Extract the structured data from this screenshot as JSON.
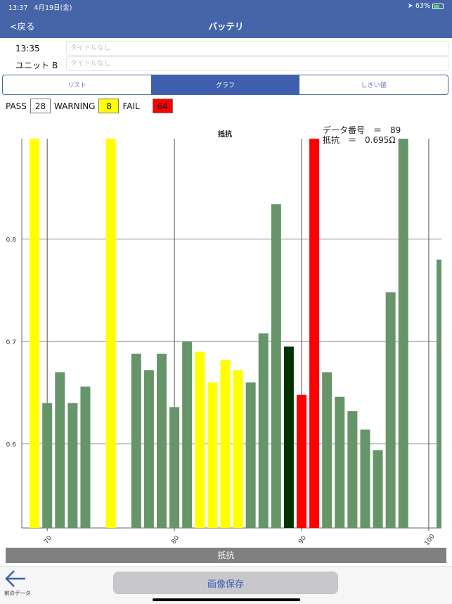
{
  "status_bar": {
    "time": "13:37",
    "date": "4月19日(金)",
    "battery": "63%",
    "battery_level": 0.63
  },
  "nav": {
    "back_label": "<戻る",
    "title": "バッテリ"
  },
  "header": {
    "time_label": "13:35",
    "unit_label": "ユニット B",
    "title_placeholder_1": "タイトルなし",
    "title_placeholder_2": "タイトルなし"
  },
  "tabs": [
    {
      "label": "リスト",
      "active": false
    },
    {
      "label": "グラフ",
      "active": true
    },
    {
      "label": "しきい値",
      "active": false
    }
  ],
  "counts": {
    "pass_label": "PASS",
    "pass": "28",
    "warning_label": "WARNING",
    "warning": "8",
    "fail_label": "FAIL",
    "fail": "64"
  },
  "colors": {
    "pass": "#66956a",
    "warning": "#ffff00",
    "fail": "#ff0000",
    "selected": "#003300",
    "accent": "#4565a8"
  },
  "readout": {
    "line1": "データ番号　＝　89",
    "line2": "抵抗　＝　0.695Ω"
  },
  "chart_data": {
    "type": "bar",
    "title": "抵抗",
    "xlabel": "抵抗",
    "ylabel": "",
    "xlim": [
      68,
      101
    ],
    "ylim": [
      0.518,
      0.898
    ],
    "xticks": [
      70,
      80,
      90,
      100
    ],
    "yticks": [
      0.6,
      0.7,
      0.8
    ],
    "grid": true,
    "selected_x": 89,
    "bars": [
      {
        "x": 69,
        "value": 0.9,
        "status": "warning",
        "clipped": true
      },
      {
        "x": 70,
        "value": 0.64,
        "status": "pass"
      },
      {
        "x": 71,
        "value": 0.67,
        "status": "pass"
      },
      {
        "x": 72,
        "value": 0.64,
        "status": "pass"
      },
      {
        "x": 73,
        "value": 0.656,
        "status": "pass"
      },
      {
        "x": 75,
        "value": 0.9,
        "status": "warning",
        "clipped": true
      },
      {
        "x": 77,
        "value": 0.688,
        "status": "pass"
      },
      {
        "x": 78,
        "value": 0.672,
        "status": "pass"
      },
      {
        "x": 79,
        "value": 0.688,
        "status": "pass"
      },
      {
        "x": 80,
        "value": 0.636,
        "status": "pass"
      },
      {
        "x": 81,
        "value": 0.7,
        "status": "pass"
      },
      {
        "x": 82,
        "value": 0.69,
        "status": "warning"
      },
      {
        "x": 83,
        "value": 0.66,
        "status": "warning"
      },
      {
        "x": 84,
        "value": 0.682,
        "status": "warning"
      },
      {
        "x": 85,
        "value": 0.672,
        "status": "warning"
      },
      {
        "x": 86,
        "value": 0.66,
        "status": "pass"
      },
      {
        "x": 87,
        "value": 0.708,
        "status": "pass"
      },
      {
        "x": 88,
        "value": 0.834,
        "status": "pass"
      },
      {
        "x": 89,
        "value": 0.695,
        "status": "selected"
      },
      {
        "x": 90,
        "value": 0.648,
        "status": "fail"
      },
      {
        "x": 91,
        "value": 0.9,
        "status": "fail",
        "clipped": true
      },
      {
        "x": 92,
        "value": 0.67,
        "status": "pass"
      },
      {
        "x": 93,
        "value": 0.646,
        "status": "pass"
      },
      {
        "x": 94,
        "value": 0.632,
        "status": "pass"
      },
      {
        "x": 95,
        "value": 0.614,
        "status": "pass"
      },
      {
        "x": 96,
        "value": 0.594,
        "status": "pass"
      },
      {
        "x": 97,
        "value": 0.748,
        "status": "pass"
      },
      {
        "x": 98,
        "value": 0.9,
        "status": "pass",
        "clipped": true
      },
      {
        "x": 101,
        "value": 0.78,
        "status": "pass"
      }
    ]
  },
  "toolbar": {
    "prev_label": "前のデータ",
    "save_label": "画像保存"
  }
}
